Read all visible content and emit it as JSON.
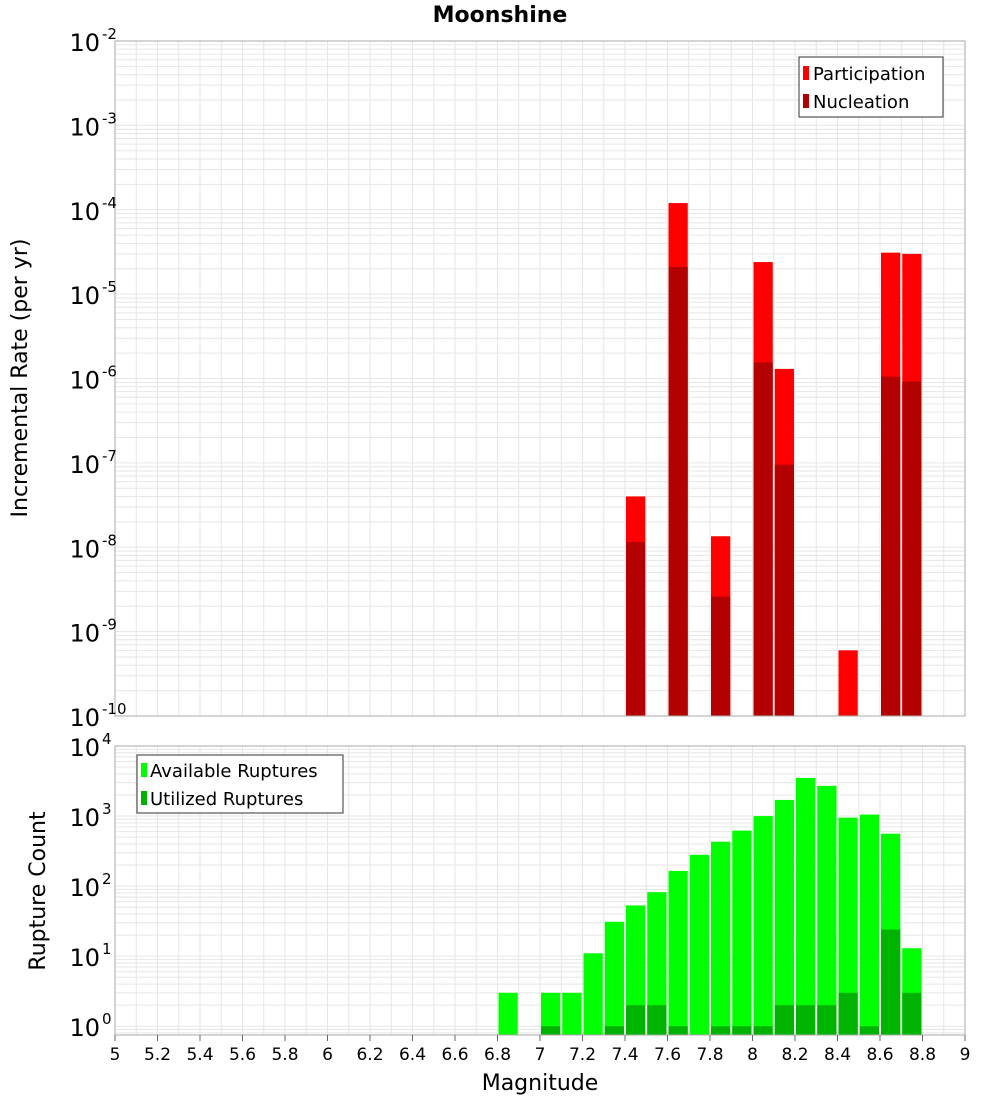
{
  "chart_data": [
    {
      "type": "bar",
      "title": "Moonshine",
      "xlabel": "",
      "ylabel": "Incremental Rate (per yr)",
      "yscale": "log",
      "ylim": [
        1e-10,
        0.01
      ],
      "xlim": [
        5,
        9
      ],
      "grid": true,
      "legend_position": "top-right",
      "x": [
        7.45,
        7.65,
        7.85,
        8.05,
        8.15,
        8.45,
        8.65,
        8.75
      ],
      "series": [
        {
          "name": "Participation",
          "color": "#ff0000",
          "values": [
            4e-08,
            0.00012,
            1.35e-08,
            2.4e-05,
            1.3e-06,
            6e-10,
            3.1e-05,
            3e-05
          ]
        },
        {
          "name": "Nucleation",
          "color": "#b30000",
          "values": [
            1.15e-08,
            2.1e-05,
            2.6e-09,
            1.55e-06,
            9.5e-08,
            null,
            1.05e-06,
            9.2e-07
          ]
        }
      ]
    },
    {
      "type": "bar",
      "title": "",
      "xlabel": "Magnitude",
      "ylabel": "Rupture Count",
      "yscale": "log",
      "ylim": [
        0.75,
        10000
      ],
      "xlim": [
        5,
        9
      ],
      "grid": true,
      "legend_position": "top-left",
      "x": [
        6.85,
        7.05,
        7.15,
        7.25,
        7.35,
        7.45,
        7.55,
        7.65,
        7.75,
        7.85,
        7.95,
        8.05,
        8.15,
        8.25,
        8.35,
        8.45,
        8.55,
        8.65,
        8.75
      ],
      "series": [
        {
          "name": "Available Ruptures",
          "color": "#00ff00",
          "values": [
            3,
            3,
            3,
            11,
            31,
            53,
            82,
            165,
            280,
            430,
            620,
            1000,
            1700,
            3500,
            2700,
            950,
            1050,
            560,
            13
          ]
        },
        {
          "name": "Utilized Ruptures",
          "color": "#00b300",
          "values": [
            null,
            1,
            null,
            null,
            1,
            2,
            2,
            1,
            null,
            1,
            1,
            1,
            2,
            2,
            2,
            3,
            1,
            24,
            3
          ]
        }
      ]
    }
  ],
  "x_ticks": [
    "5",
    "5.2",
    "5.4",
    "5.6",
    "5.8",
    "6",
    "6.2",
    "6.4",
    "6.6",
    "6.8",
    "7",
    "7.2",
    "7.4",
    "7.6",
    "7.8",
    "8",
    "8.2",
    "8.4",
    "8.6",
    "8.8",
    "9"
  ],
  "top_y_ticks": [
    {
      "base": "10",
      "exp": "-2"
    },
    {
      "base": "10",
      "exp": "-3"
    },
    {
      "base": "10",
      "exp": "-4"
    },
    {
      "base": "10",
      "exp": "-5"
    },
    {
      "base": "10",
      "exp": "-6"
    },
    {
      "base": "10",
      "exp": "-7"
    },
    {
      "base": "10",
      "exp": "-8"
    },
    {
      "base": "10",
      "exp": "-9"
    },
    {
      "base": "10",
      "exp": "-10"
    }
  ],
  "bottom_y_ticks": [
    {
      "base": "10",
      "exp": "4"
    },
    {
      "base": "10",
      "exp": "3"
    },
    {
      "base": "10",
      "exp": "2"
    },
    {
      "base": "10",
      "exp": "1"
    },
    {
      "base": "10",
      "exp": "0"
    }
  ],
  "colors": {
    "participation": "#ff0000",
    "nucleation": "#b30000",
    "available": "#00ff00",
    "utilized": "#00b300",
    "grid": "#e6e6e6",
    "frame": "#aaaaaa"
  }
}
